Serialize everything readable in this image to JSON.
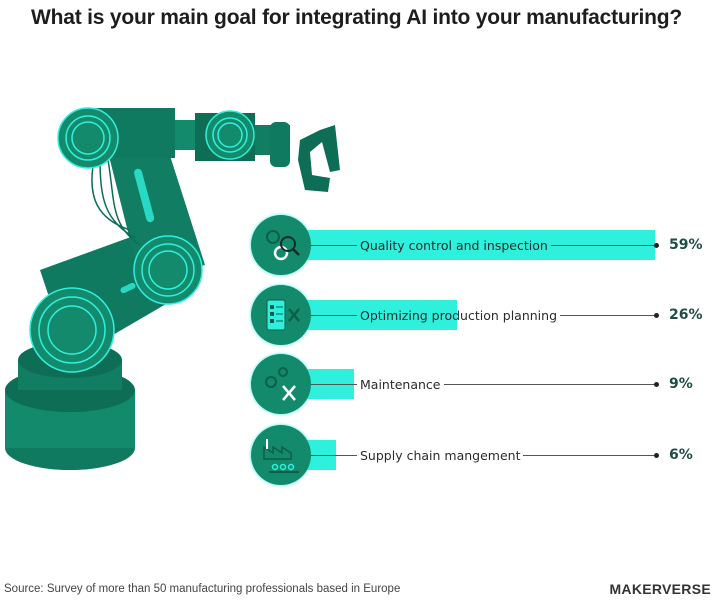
{
  "title": "What is your main goal for integrating AI into your manufacturing?",
  "source": "Source: Survey of more than 50 manufacturing professionals based in Europe",
  "logo": "MAKERVERSE",
  "colors": {
    "bar": "#2ff0dc",
    "icon_circle": "#138a6c",
    "robot": "#138a6c",
    "robot_dark": "#0d6e55"
  },
  "chart_data": {
    "type": "bar",
    "orientation": "horizontal",
    "title": "What is your main goal for integrating AI into your manufacturing?",
    "categories": [
      "Quality control and inspection",
      "Optimizing production planning",
      "Maintenance",
      "Supply chain mangement"
    ],
    "values": [
      59,
      26,
      9,
      6
    ],
    "value_labels": [
      "59%",
      "26%",
      "9%",
      "6%"
    ],
    "icons": [
      "gears-magnifier-icon",
      "checklist-tools-icon",
      "gears-wrench-icon",
      "factory-conveyor-icon"
    ],
    "unit": "%",
    "grid": false
  }
}
